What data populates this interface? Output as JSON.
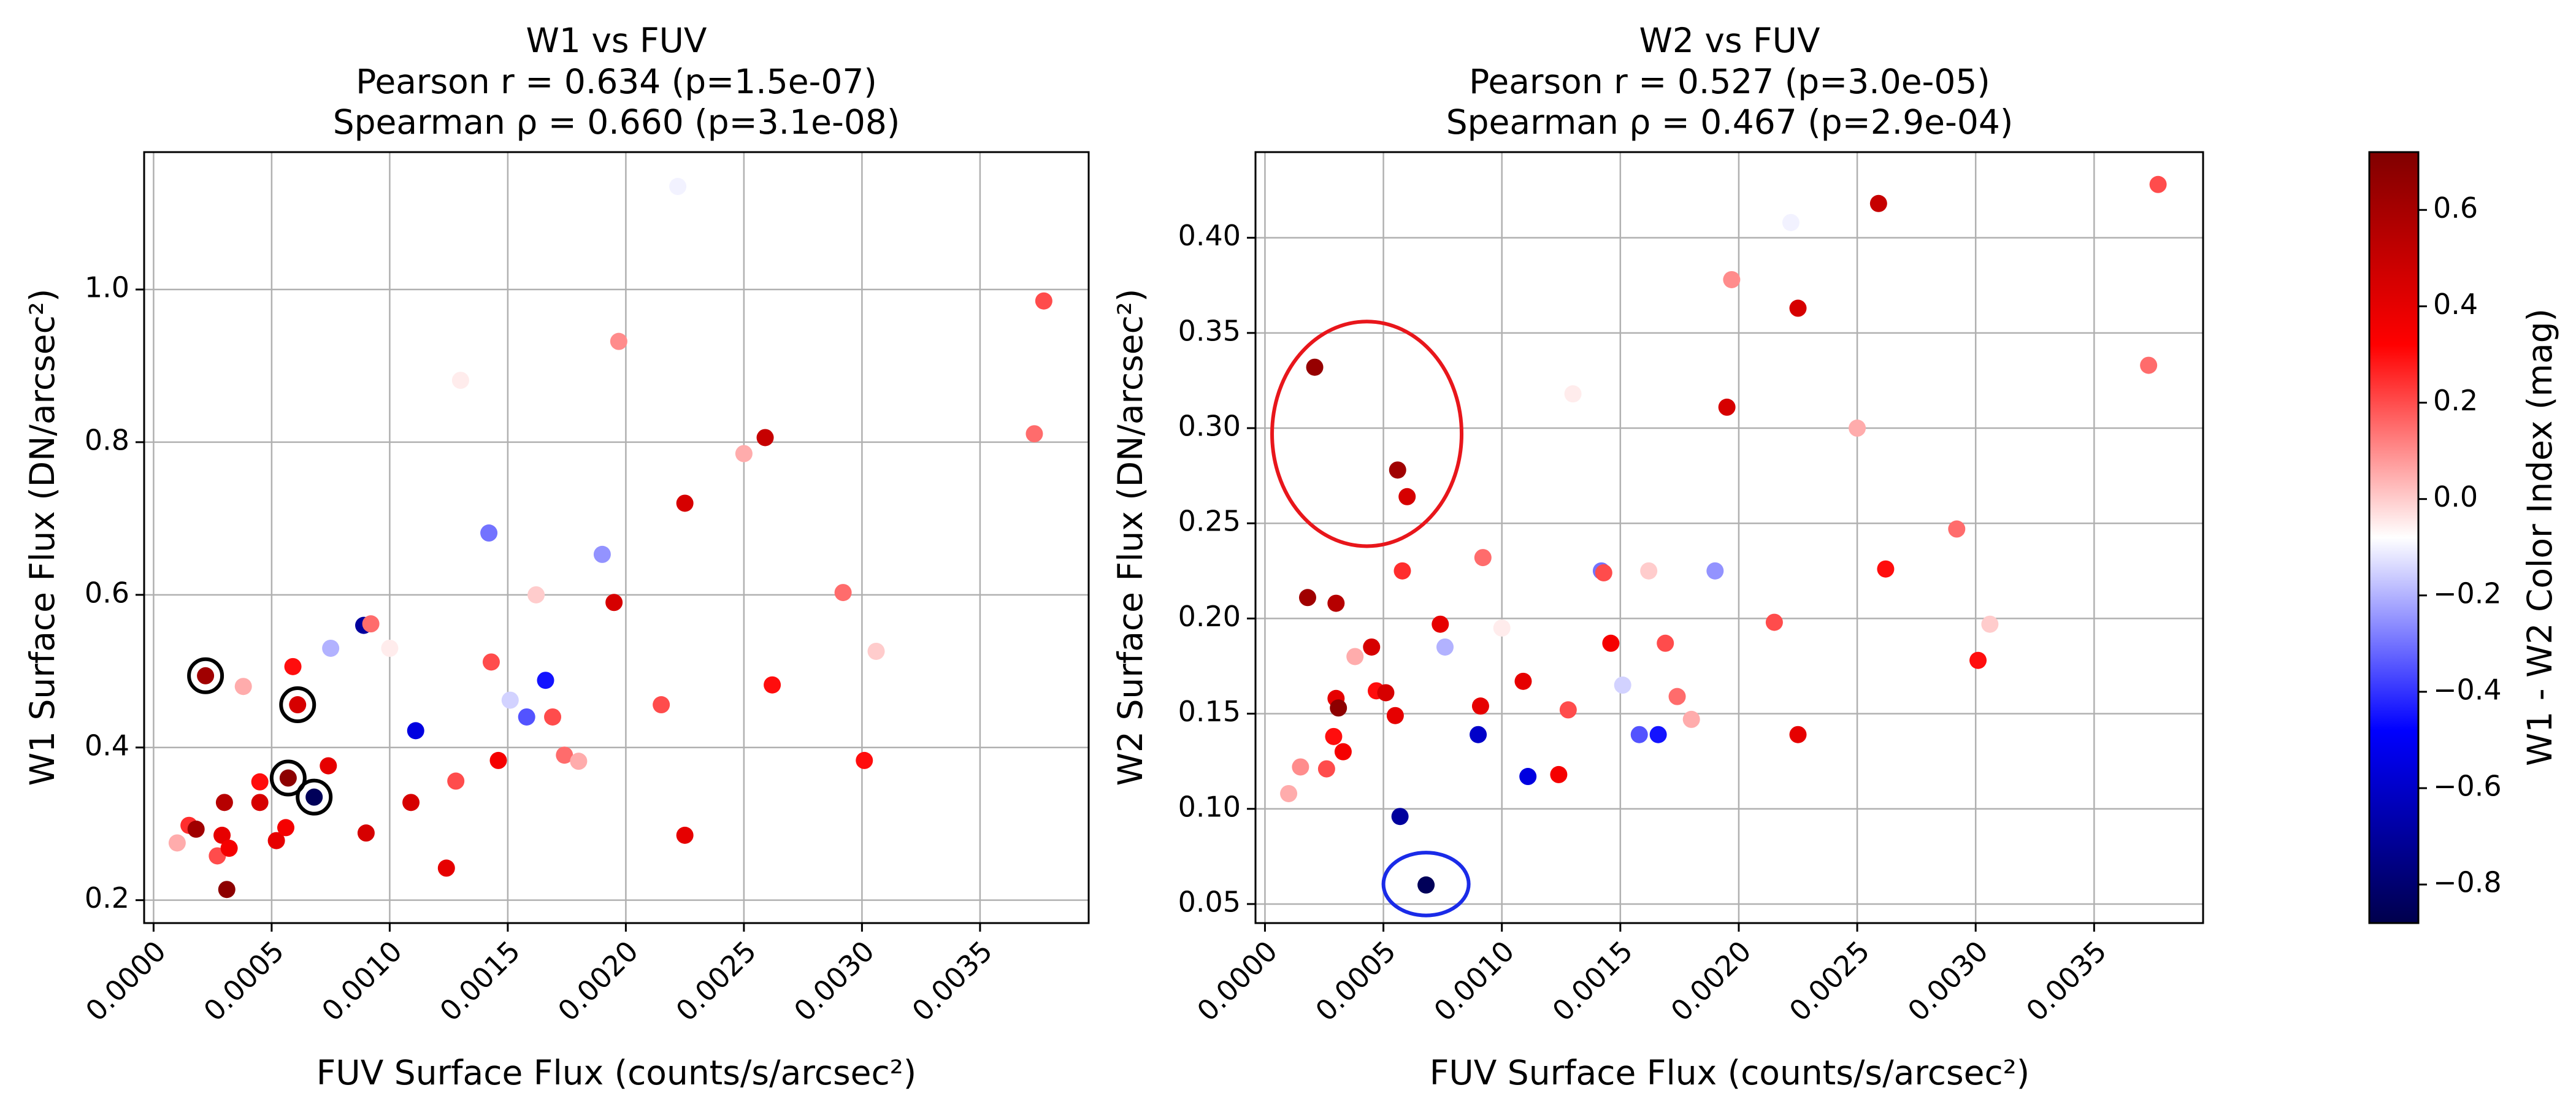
{
  "chart_data": [
    {
      "type": "scatter",
      "title": [
        "W1 vs FUV",
        "Pearson r = 0.634 (p=1.5e-07)",
        "Spearman ρ = 0.660 (p=3.1e-08)"
      ],
      "xlabel": "FUV Surface Flux (counts/s/arcsec²)",
      "ylabel": "W1 Surface Flux (DN/arcsec²)",
      "xlim": [
        -4e-05,
        0.00396
      ],
      "ylim": [
        0.17,
        1.18
      ],
      "xticks": [
        0.0,
        0.0005,
        0.001,
        0.0015,
        0.002,
        0.0025,
        0.003,
        0.0035
      ],
      "xtick_labels": [
        "0.0000",
        "0.0005",
        "0.0010",
        "0.0015",
        "0.0020",
        "0.0025",
        "0.0030",
        "0.0035"
      ],
      "yticks": [
        0.2,
        0.4,
        0.6,
        0.8,
        1.0
      ],
      "ytick_labels": [
        "0.2",
        "0.4",
        "0.6",
        "0.8",
        "1.0"
      ],
      "grid": true,
      "points": [
        {
          "x": 0.0001,
          "y": 0.275,
          "c": 0.05
        },
        {
          "x": 0.00015,
          "y": 0.298,
          "c": 0.25
        },
        {
          "x": 0.00018,
          "y": 0.293,
          "c": 0.62
        },
        {
          "x": 0.00027,
          "y": 0.258,
          "c": 0.2
        },
        {
          "x": 0.00029,
          "y": 0.285,
          "c": 0.4
        },
        {
          "x": 0.0003,
          "y": 0.328,
          "c": 0.55
        },
        {
          "x": 0.00031,
          "y": 0.214,
          "c": 0.68
        },
        {
          "x": 0.00032,
          "y": 0.268,
          "c": 0.35
        },
        {
          "x": 0.00038,
          "y": 0.48,
          "c": 0.05
        },
        {
          "x": 0.00045,
          "y": 0.355,
          "c": 0.3
        },
        {
          "x": 0.00045,
          "y": 0.328,
          "c": 0.45
        },
        {
          "x": 0.00052,
          "y": 0.278,
          "c": 0.4
        },
        {
          "x": 0.00056,
          "y": 0.295,
          "c": 0.35
        },
        {
          "x": 0.00059,
          "y": 0.506,
          "c": 0.3
        },
        {
          "x": 0.00074,
          "y": 0.376,
          "c": 0.4
        },
        {
          "x": 0.00075,
          "y": 0.53,
          "c": -0.2
        },
        {
          "x": 0.00089,
          "y": 0.56,
          "c": -0.7
        },
        {
          "x": 0.0009,
          "y": 0.288,
          "c": 0.45
        },
        {
          "x": 0.00092,
          "y": 0.562,
          "c": 0.15
        },
        {
          "x": 0.001,
          "y": 0.53,
          "c": -0.05
        },
        {
          "x": 0.00109,
          "y": 0.328,
          "c": 0.45
        },
        {
          "x": 0.00111,
          "y": 0.422,
          "c": -0.55
        },
        {
          "x": 0.00124,
          "y": 0.242,
          "c": 0.4
        },
        {
          "x": 0.00128,
          "y": 0.356,
          "c": 0.2
        },
        {
          "x": 0.0013,
          "y": 0.881,
          "c": -0.05
        },
        {
          "x": 0.00142,
          "y": 0.681,
          "c": -0.3
        },
        {
          "x": 0.00143,
          "y": 0.512,
          "c": 0.2
        },
        {
          "x": 0.00146,
          "y": 0.383,
          "c": 0.35
        },
        {
          "x": 0.00151,
          "y": 0.462,
          "c": -0.15
        },
        {
          "x": 0.00158,
          "y": 0.44,
          "c": -0.35
        },
        {
          "x": 0.00162,
          "y": 0.6,
          "c": 0.0
        },
        {
          "x": 0.00166,
          "y": 0.488,
          "c": -0.45
        },
        {
          "x": 0.00169,
          "y": 0.44,
          "c": 0.2
        },
        {
          "x": 0.00174,
          "y": 0.39,
          "c": 0.15
        },
        {
          "x": 0.0018,
          "y": 0.382,
          "c": 0.05
        },
        {
          "x": 0.0019,
          "y": 0.653,
          "c": -0.25
        },
        {
          "x": 0.00195,
          "y": 0.59,
          "c": 0.45
        },
        {
          "x": 0.00197,
          "y": 0.932,
          "c": 0.1
        },
        {
          "x": 0.00215,
          "y": 0.456,
          "c": 0.2
        },
        {
          "x": 0.00222,
          "y": 1.135,
          "c": -0.1
        },
        {
          "x": 0.00225,
          "y": 0.72,
          "c": 0.45
        },
        {
          "x": 0.00225,
          "y": 0.285,
          "c": 0.4
        },
        {
          "x": 0.0025,
          "y": 0.785,
          "c": 0.05
        },
        {
          "x": 0.00259,
          "y": 0.806,
          "c": 0.5
        },
        {
          "x": 0.00262,
          "y": 0.482,
          "c": 0.3
        },
        {
          "x": 0.00292,
          "y": 0.603,
          "c": 0.15
        },
        {
          "x": 0.00301,
          "y": 0.383,
          "c": 0.3
        },
        {
          "x": 0.00306,
          "y": 0.526,
          "c": 0.0
        },
        {
          "x": 0.00373,
          "y": 0.811,
          "c": 0.15
        },
        {
          "x": 0.00377,
          "y": 0.985,
          "c": 0.2
        }
      ],
      "highlight_points": [
        {
          "x": 0.00022,
          "y": 0.494,
          "c": 0.62
        },
        {
          "x": 0.00057,
          "y": 0.36,
          "c": 0.68
        },
        {
          "x": 0.00061,
          "y": 0.456,
          "c": 0.45
        },
        {
          "x": 0.00068,
          "y": 0.335,
          "c": -0.85
        }
      ]
    },
    {
      "type": "scatter",
      "title": [
        "W2 vs FUV",
        "Pearson r = 0.527 (p=3.0e-05)",
        "Spearman ρ = 0.467 (p=2.9e-04)"
      ],
      "xlabel": "FUV Surface Flux (counts/s/arcsec²)",
      "ylabel": "W2 Surface Flux (DN/arcsec²)",
      "xlim": [
        -4e-05,
        0.00396
      ],
      "ylim": [
        0.04,
        0.445
      ],
      "xticks": [
        0.0,
        0.0005,
        0.001,
        0.0015,
        0.002,
        0.0025,
        0.003,
        0.0035
      ],
      "xtick_labels": [
        "0.0000",
        "0.0005",
        "0.0010",
        "0.0015",
        "0.0020",
        "0.0025",
        "0.0030",
        "0.0035"
      ],
      "yticks": [
        0.05,
        0.1,
        0.15,
        0.2,
        0.25,
        0.3,
        0.35,
        0.4
      ],
      "ytick_labels": [
        "0.05",
        "0.10",
        "0.15",
        "0.20",
        "0.25",
        "0.30",
        "0.35",
        "0.40"
      ],
      "grid": true,
      "points": [
        {
          "x": 0.0001,
          "y": 0.108,
          "c": 0.05
        },
        {
          "x": 0.00015,
          "y": 0.122,
          "c": 0.1
        },
        {
          "x": 0.00018,
          "y": 0.211,
          "c": 0.62
        },
        {
          "x": 0.00021,
          "y": 0.332,
          "c": 0.65
        },
        {
          "x": 0.00026,
          "y": 0.121,
          "c": 0.2
        },
        {
          "x": 0.00029,
          "y": 0.138,
          "c": 0.3
        },
        {
          "x": 0.0003,
          "y": 0.208,
          "c": 0.55
        },
        {
          "x": 0.0003,
          "y": 0.158,
          "c": 0.4
        },
        {
          "x": 0.00031,
          "y": 0.153,
          "c": 0.68
        },
        {
          "x": 0.00033,
          "y": 0.13,
          "c": 0.35
        },
        {
          "x": 0.00038,
          "y": 0.18,
          "c": 0.05
        },
        {
          "x": 0.00045,
          "y": 0.185,
          "c": 0.45
        },
        {
          "x": 0.00047,
          "y": 0.162,
          "c": 0.3
        },
        {
          "x": 0.00051,
          "y": 0.161,
          "c": 0.45
        },
        {
          "x": 0.00055,
          "y": 0.149,
          "c": 0.4
        },
        {
          "x": 0.00056,
          "y": 0.278,
          "c": 0.62
        },
        {
          "x": 0.00057,
          "y": 0.096,
          "c": -0.7
        },
        {
          "x": 0.00058,
          "y": 0.225,
          "c": 0.25
        },
        {
          "x": 0.0006,
          "y": 0.264,
          "c": 0.45
        },
        {
          "x": 0.00068,
          "y": 0.06,
          "c": -0.85
        },
        {
          "x": 0.00074,
          "y": 0.197,
          "c": 0.4
        },
        {
          "x": 0.00076,
          "y": 0.185,
          "c": -0.2
        },
        {
          "x": 0.0009,
          "y": 0.139,
          "c": -0.6
        },
        {
          "x": 0.00091,
          "y": 0.154,
          "c": 0.4
        },
        {
          "x": 0.00092,
          "y": 0.232,
          "c": 0.15
        },
        {
          "x": 0.001,
          "y": 0.195,
          "c": -0.05
        },
        {
          "x": 0.00109,
          "y": 0.167,
          "c": 0.4
        },
        {
          "x": 0.00111,
          "y": 0.117,
          "c": -0.55
        },
        {
          "x": 0.00124,
          "y": 0.118,
          "c": 0.35
        },
        {
          "x": 0.00128,
          "y": 0.152,
          "c": 0.2
        },
        {
          "x": 0.0013,
          "y": 0.318,
          "c": -0.05
        },
        {
          "x": 0.00142,
          "y": 0.225,
          "c": -0.3
        },
        {
          "x": 0.00143,
          "y": 0.224,
          "c": 0.2
        },
        {
          "x": 0.00146,
          "y": 0.187,
          "c": 0.35
        },
        {
          "x": 0.00151,
          "y": 0.165,
          "c": -0.15
        },
        {
          "x": 0.00158,
          "y": 0.139,
          "c": -0.35
        },
        {
          "x": 0.00162,
          "y": 0.225,
          "c": 0.0
        },
        {
          "x": 0.00166,
          "y": 0.139,
          "c": -0.45
        },
        {
          "x": 0.00169,
          "y": 0.187,
          "c": 0.2
        },
        {
          "x": 0.00174,
          "y": 0.159,
          "c": 0.15
        },
        {
          "x": 0.0018,
          "y": 0.147,
          "c": 0.05
        },
        {
          "x": 0.0019,
          "y": 0.225,
          "c": -0.25
        },
        {
          "x": 0.00195,
          "y": 0.311,
          "c": 0.45
        },
        {
          "x": 0.00197,
          "y": 0.378,
          "c": 0.1
        },
        {
          "x": 0.00215,
          "y": 0.198,
          "c": 0.2
        },
        {
          "x": 0.00222,
          "y": 0.408,
          "c": -0.1
        },
        {
          "x": 0.00225,
          "y": 0.363,
          "c": 0.45
        },
        {
          "x": 0.00225,
          "y": 0.139,
          "c": 0.4
        },
        {
          "x": 0.0025,
          "y": 0.3,
          "c": 0.05
        },
        {
          "x": 0.00259,
          "y": 0.418,
          "c": 0.5
        },
        {
          "x": 0.00262,
          "y": 0.226,
          "c": 0.3
        },
        {
          "x": 0.00292,
          "y": 0.247,
          "c": 0.15
        },
        {
          "x": 0.00301,
          "y": 0.178,
          "c": 0.3
        },
        {
          "x": 0.00306,
          "y": 0.197,
          "c": 0.0
        },
        {
          "x": 0.00373,
          "y": 0.333,
          "c": 0.15
        },
        {
          "x": 0.00377,
          "y": 0.428,
          "c": 0.2
        }
      ],
      "ellipses": [
        {
          "cx": 0.00043,
          "cy": 0.297,
          "rx": 0.0004,
          "ry": 0.059,
          "color": "#e8161b"
        },
        {
          "cx": 0.00068,
          "cy": 0.0605,
          "rx": 0.00018,
          "ry": 0.0165,
          "color": "#1a2be8"
        }
      ]
    }
  ],
  "colorbar": {
    "label": "W1 - W2 Color Index (mag)",
    "range": [
      -0.88,
      0.72
    ],
    "ticks": [
      -0.8,
      -0.6,
      -0.4,
      -0.2,
      0.0,
      0.2,
      0.4,
      0.6
    ],
    "tick_labels": [
      "−0.8",
      "−0.6",
      "−0.4",
      "−0.2",
      "0.0",
      "0.2",
      "0.4",
      "0.6"
    ],
    "colormap": "seismic"
  }
}
